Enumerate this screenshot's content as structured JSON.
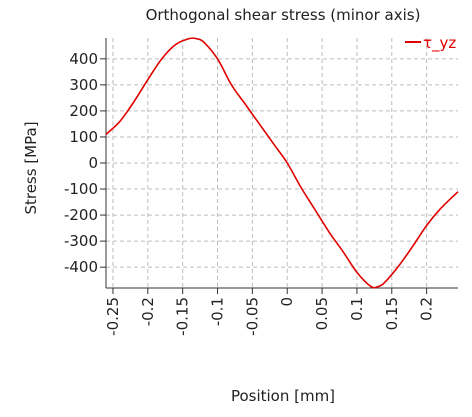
{
  "chart_data": {
    "type": "line",
    "title": "Orthogonal shear stress (minor axis)",
    "xlabel": "Position [mm]",
    "ylabel": "Stress [MPa]",
    "xlim": [
      -0.26,
      0.245
    ],
    "ylim": [
      -480,
      480
    ],
    "x_ticks": [
      -0.25,
      -0.2,
      -0.15,
      -0.1,
      -0.05,
      0,
      0.05,
      0.1,
      0.15,
      0.2
    ],
    "x_tick_labels": [
      "-0.25",
      "-0.2",
      "-0.15",
      "-0.1",
      "-0.05",
      "0",
      "0.05",
      "0.1",
      "0.15",
      "0.2"
    ],
    "y_ticks": [
      400,
      300,
      200,
      100,
      0,
      -100,
      -200,
      -300,
      -400
    ],
    "y_tick_labels": [
      "400",
      "300",
      "200",
      "100",
      "0",
      "-100",
      "-200",
      "-300",
      "-400"
    ],
    "grid": true,
    "legend_position": "top-right",
    "series": [
      {
        "name": "τ_yz",
        "color": "#e00000",
        "x": [
          -0.26,
          -0.24,
          -0.22,
          -0.2,
          -0.18,
          -0.16,
          -0.14,
          -0.13,
          -0.12,
          -0.1,
          -0.08,
          -0.06,
          -0.04,
          -0.02,
          0,
          0.02,
          0.04,
          0.06,
          0.08,
          0.1,
          0.12,
          0.13,
          0.14,
          0.16,
          0.18,
          0.2,
          0.22,
          0.245
        ],
        "y": [
          110,
          160,
          235,
          320,
          400,
          455,
          478,
          477,
          465,
          400,
          300,
          225,
          150,
          75,
          0,
          -95,
          -180,
          -265,
          -340,
          -420,
          -474,
          -475,
          -458,
          -395,
          -320,
          -240,
          -175,
          -110
        ]
      }
    ]
  }
}
